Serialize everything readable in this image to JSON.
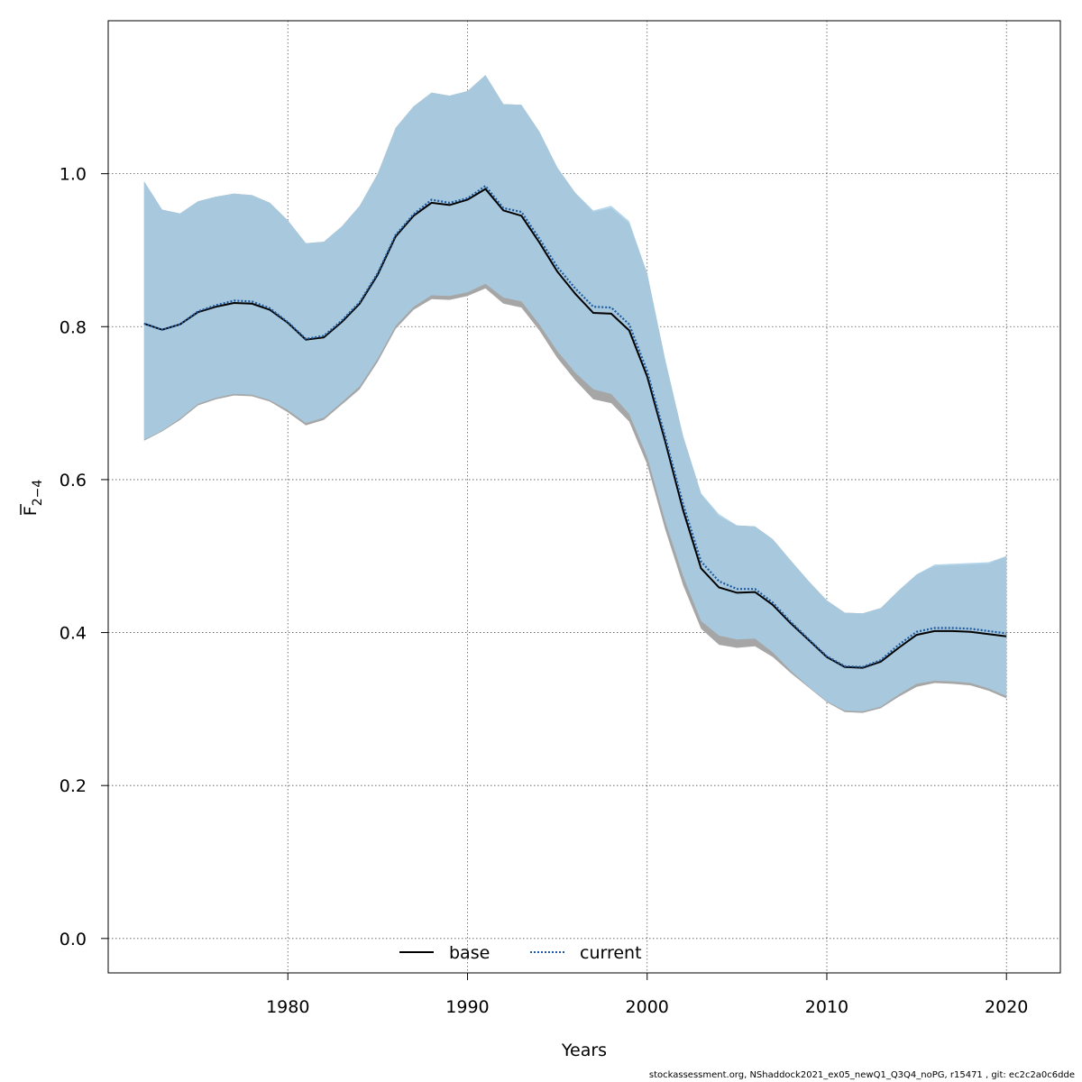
{
  "chart_data": {
    "type": "line",
    "xlabel": "Years",
    "ylabel": "F",
    "ylabel_subscript": "2−4",
    "xlim": [
      1970,
      2023
    ],
    "ylim": [
      -0.045,
      1.2
    ],
    "xticks": [
      1980,
      1990,
      2000,
      2010,
      2020
    ],
    "yticks": [
      0.0,
      0.2,
      0.4,
      0.6,
      0.8,
      1.0
    ],
    "xtick_labels": [
      "1980",
      "1990",
      "2000",
      "2010",
      "2020"
    ],
    "ytick_labels": [
      "0.0",
      "0.2",
      "0.4",
      "0.6",
      "0.8",
      "1.0"
    ],
    "grid": true,
    "legend_position": "bottom-center",
    "x": [
      1972,
      1973,
      1974,
      1975,
      1976,
      1977,
      1978,
      1979,
      1980,
      1981,
      1982,
      1983,
      1984,
      1985,
      1986,
      1987,
      1988,
      1989,
      1990,
      1991,
      1992,
      1993,
      1994,
      1995,
      1996,
      1997,
      1998,
      1999,
      2000,
      2001,
      2002,
      2003,
      2004,
      2005,
      2006,
      2007,
      2008,
      2009,
      2010,
      2011,
      2012,
      2013,
      2014,
      2015,
      2016,
      2017,
      2018,
      2019,
      2020
    ],
    "series": [
      {
        "name": "base",
        "line_color": "#000000",
        "band_color": "#a6a6a6",
        "values": [
          0.804,
          0.796,
          0.803,
          0.819,
          0.826,
          0.831,
          0.83,
          0.822,
          0.805,
          0.783,
          0.786,
          0.806,
          0.83,
          0.868,
          0.918,
          0.945,
          0.962,
          0.959,
          0.966,
          0.98,
          0.952,
          0.945,
          0.91,
          0.872,
          0.843,
          0.818,
          0.817,
          0.795,
          0.735,
          0.65,
          0.56,
          0.484,
          0.459,
          0.452,
          0.453,
          0.436,
          0.412,
          0.39,
          0.368,
          0.355,
          0.354,
          0.362,
          0.38,
          0.397,
          0.402,
          0.402,
          0.401,
          0.398,
          0.395
        ],
        "lower": [
          0.651,
          0.663,
          0.678,
          0.697,
          0.705,
          0.71,
          0.709,
          0.702,
          0.688,
          0.671,
          0.678,
          0.698,
          0.718,
          0.754,
          0.797,
          0.822,
          0.836,
          0.835,
          0.84,
          0.85,
          0.83,
          0.825,
          0.795,
          0.759,
          0.73,
          0.705,
          0.7,
          0.676,
          0.62,
          0.535,
          0.462,
          0.405,
          0.384,
          0.38,
          0.382,
          0.368,
          0.347,
          0.328,
          0.309,
          0.296,
          0.295,
          0.301,
          0.316,
          0.329,
          0.334,
          0.333,
          0.331,
          0.324,
          0.314
        ],
        "upper": [
          0.99,
          0.953,
          0.948,
          0.964,
          0.97,
          0.974,
          0.972,
          0.962,
          0.939,
          0.909,
          0.911,
          0.931,
          0.958,
          1.0,
          1.06,
          1.088,
          1.106,
          1.102,
          1.108,
          1.129,
          1.091,
          1.09,
          1.055,
          1.008,
          0.975,
          0.95,
          0.955,
          0.935,
          0.87,
          0.757,
          0.657,
          0.582,
          0.552,
          0.54,
          0.539,
          0.522,
          0.494,
          0.467,
          0.442,
          0.426,
          0.425,
          0.432,
          0.455,
          0.476,
          0.487,
          0.488,
          0.489,
          0.49,
          0.5
        ]
      },
      {
        "name": "current",
        "line_color": "#1f5aa0",
        "band_color": "#a8cfe6",
        "values": [
          0.804,
          0.796,
          0.803,
          0.82,
          0.828,
          0.834,
          0.833,
          0.824,
          0.806,
          0.784,
          0.788,
          0.808,
          0.832,
          0.87,
          0.92,
          0.947,
          0.966,
          0.962,
          0.968,
          0.984,
          0.955,
          0.95,
          0.915,
          0.878,
          0.85,
          0.826,
          0.825,
          0.803,
          0.742,
          0.656,
          0.568,
          0.493,
          0.467,
          0.457,
          0.457,
          0.439,
          0.414,
          0.391,
          0.369,
          0.356,
          0.355,
          0.364,
          0.384,
          0.401,
          0.406,
          0.406,
          0.405,
          0.402,
          0.399
        ],
        "lower": [
          0.652,
          0.664,
          0.68,
          0.699,
          0.707,
          0.712,
          0.711,
          0.704,
          0.691,
          0.674,
          0.681,
          0.701,
          0.722,
          0.758,
          0.801,
          0.826,
          0.841,
          0.84,
          0.845,
          0.856,
          0.838,
          0.833,
          0.803,
          0.768,
          0.74,
          0.718,
          0.712,
          0.686,
          0.63,
          0.546,
          0.474,
          0.415,
          0.396,
          0.391,
          0.392,
          0.374,
          0.35,
          0.329,
          0.31,
          0.298,
          0.297,
          0.303,
          0.319,
          0.333,
          0.337,
          0.336,
          0.334,
          0.327,
          0.317
        ],
        "upper": [
          0.99,
          0.953,
          0.948,
          0.964,
          0.97,
          0.974,
          0.972,
          0.962,
          0.939,
          0.909,
          0.911,
          0.931,
          0.958,
          1.0,
          1.06,
          1.088,
          1.106,
          1.102,
          1.108,
          1.129,
          1.091,
          1.09,
          1.055,
          1.008,
          0.975,
          0.952,
          0.958,
          0.938,
          0.87,
          0.757,
          0.657,
          0.582,
          0.555,
          0.54,
          0.539,
          0.522,
          0.494,
          0.467,
          0.442,
          0.426,
          0.425,
          0.432,
          0.455,
          0.476,
          0.489,
          0.49,
          0.491,
          0.492,
          0.5
        ]
      }
    ]
  },
  "footer": "stockassessment.org, NShaddock2021_ex05_newQ1_Q3Q4_noPG, r15471 , git: ec2c2a0c6dde"
}
